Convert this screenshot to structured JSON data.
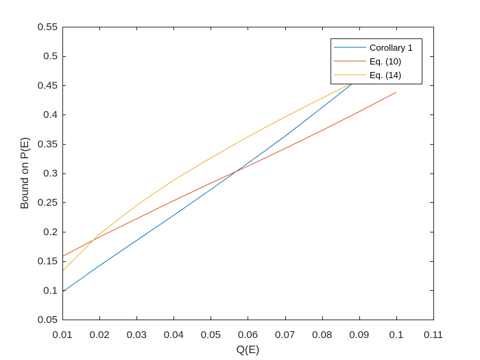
{
  "chart_data": {
    "type": "line",
    "title": "",
    "xlabel": "Q(E)",
    "ylabel": "Bound on P(E)",
    "xlim": [
      0.01,
      0.11
    ],
    "ylim": [
      0.05,
      0.55
    ],
    "xticks": [
      "0.01",
      "0.02",
      "0.03",
      "0.04",
      "0.05",
      "0.06",
      "0.07",
      "0.08",
      "0.09",
      "0.1",
      "0.11"
    ],
    "yticks": [
      "0.05",
      "0.1",
      "0.15",
      "0.2",
      "0.25",
      "0.3",
      "0.35",
      "0.4",
      "0.45",
      "0.5",
      "0.55"
    ],
    "grid": false,
    "legend_position": "top-right",
    "series": [
      {
        "name": "Corollary 1",
        "color": "#0072BD",
        "x": [
          0.01,
          0.02,
          0.03,
          0.04,
          0.05,
          0.06,
          0.07,
          0.08,
          0.09
        ],
        "y": [
          0.097,
          0.142,
          0.185,
          0.228,
          0.272,
          0.317,
          0.363,
          0.412,
          0.462
        ]
      },
      {
        "name": "Eq. (10)",
        "color": "#D95319",
        "x": [
          0.01,
          0.02,
          0.03,
          0.04,
          0.05,
          0.06,
          0.07,
          0.08,
          0.09,
          0.1
        ],
        "y": [
          0.158,
          0.191,
          0.222,
          0.253,
          0.283,
          0.312,
          0.342,
          0.373,
          0.405,
          0.438
        ]
      },
      {
        "name": "Eq. (14)",
        "color": "#EDB120",
        "x": [
          0.01,
          0.02,
          0.03,
          0.04,
          0.05,
          0.06,
          0.07,
          0.08,
          0.09
        ],
        "y": [
          0.133,
          0.196,
          0.245,
          0.288,
          0.326,
          0.362,
          0.396,
          0.428,
          0.46
        ]
      }
    ]
  }
}
